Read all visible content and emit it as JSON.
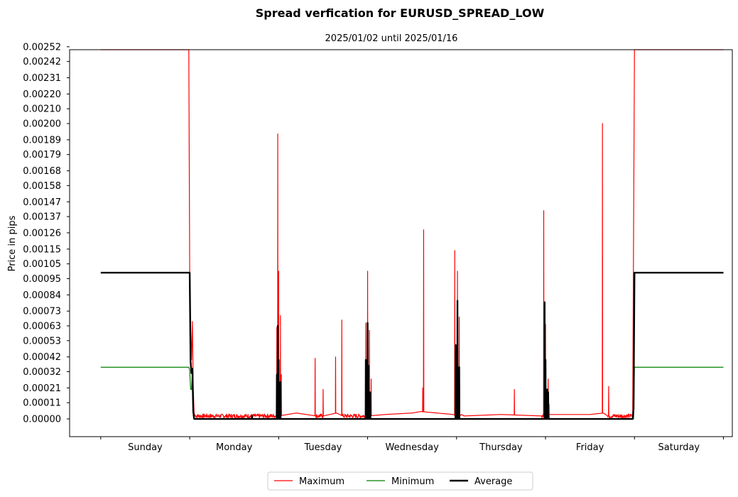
{
  "chart_data": {
    "type": "line",
    "title": "Spread verfication for EURUSD_SPREAD_LOW",
    "subtitle": "2025/01/02 until 2025/01/16",
    "xlabel": "",
    "ylabel": "Price in pips",
    "ylim": [
      -0.00012,
      0.0025
    ],
    "yticks": [
      "0.00000",
      "0.00011",
      "0.00021",
      "0.00032",
      "0.00042",
      "0.00053",
      "0.00063",
      "0.00073",
      "0.00084",
      "0.00095",
      "0.00105",
      "0.00115",
      "0.00126",
      "0.00137",
      "0.00147",
      "0.00158",
      "0.00168",
      "0.00179",
      "0.00189",
      "0.00200",
      "0.00210",
      "0.00220",
      "0.00231",
      "0.00242",
      "0.00252"
    ],
    "xlim": [
      -0.35,
      7.1
    ],
    "categories": [
      "Sunday",
      "Monday",
      "Tuesday",
      "Wednesday",
      "Thursday",
      "Friday",
      "Saturday"
    ],
    "category_centers": [
      0.5,
      1.5,
      2.5,
      3.5,
      4.5,
      5.5,
      6.5
    ],
    "category_boundaries": [
      0,
      1,
      2,
      3,
      4,
      5,
      6,
      7
    ],
    "legend": {
      "placement": "bottom-center",
      "entries": [
        "Maximum",
        "Minimum",
        "Average"
      ]
    },
    "series": [
      {
        "name": "Maximum",
        "color": "#ff0000",
        "width": 1.2,
        "baseline": 2e-05,
        "noise": 2e-05,
        "x": [
          0,
          0.99,
          1.0,
          1.01,
          1.02,
          1.03,
          1.04,
          1.05,
          1.06,
          1.07,
          2.0,
          2.2,
          2.42,
          2.5,
          2.65,
          2.72,
          3.0,
          3.2,
          3.5,
          3.6,
          3.96,
          4.0,
          4.03,
          4.06,
          4.08,
          4.5,
          4.96,
          5.0,
          5.02,
          5.5,
          5.65,
          5.7,
          5.98,
          6.0,
          6.01,
          7.0
        ],
        "y": [
          0.0025,
          0.0025,
          0.00099,
          0.0006,
          0.0004,
          0.00066,
          0.0002,
          4e-05,
          2e-05,
          2e-05,
          2e-05,
          4e-05,
          2e-05,
          2e-05,
          4e-05,
          2e-05,
          2e-05,
          3e-05,
          4e-05,
          5e-05,
          3e-05,
          2e-05,
          2e-05,
          3e-05,
          2e-05,
          3e-05,
          2e-05,
          2e-05,
          3e-05,
          3e-05,
          4e-05,
          2e-05,
          2e-05,
          0.0025,
          0.0025,
          0.0025
        ],
        "spikes": [
          [
            1.98,
            0.00062
          ],
          [
            1.99,
            0.00193
          ],
          [
            2.0,
            0.001
          ],
          [
            2.02,
            0.0007
          ],
          [
            2.03,
            0.0003
          ],
          [
            2.41,
            0.00041
          ],
          [
            2.5,
            0.0002
          ],
          [
            2.64,
            0.00042
          ],
          [
            2.71,
            0.00067
          ],
          [
            2.98,
            0.00065
          ],
          [
            3.0,
            0.001
          ],
          [
            3.02,
            0.0006
          ],
          [
            3.04,
            0.00027
          ],
          [
            3.62,
            0.00021
          ],
          [
            3.63,
            0.00128
          ],
          [
            3.98,
            0.00114
          ],
          [
            4.01,
            0.001
          ],
          [
            4.03,
            0.00069
          ],
          [
            4.65,
            0.0002
          ],
          [
            4.98,
            0.00141
          ],
          [
            5.0,
            0.00064
          ],
          [
            5.03,
            0.00027
          ],
          [
            5.64,
            0.002
          ],
          [
            5.71,
            0.00022
          ]
        ]
      },
      {
        "name": "Minimum",
        "color": "#008000",
        "width": 1.2,
        "baseline": 0.0,
        "noise": 0.0,
        "x": [
          0,
          0.99,
          1.0,
          1.01,
          1.02,
          1.03,
          1.04,
          1.05,
          2.0,
          5.99,
          6.0,
          7.0
        ],
        "y": [
          0.00035,
          0.00035,
          0.00033,
          0.0002,
          0.0002,
          0.00031,
          5e-05,
          0.0,
          0.0,
          0.0,
          0.00035,
          0.00035
        ],
        "spikes": [
          [
            1.7,
            2e-05
          ],
          [
            1.99,
            0.0002
          ],
          [
            2.0,
            0.00014
          ],
          [
            2.02,
            6e-05
          ],
          [
            3.0,
            0.00016
          ],
          [
            3.02,
            0.0001
          ],
          [
            4.0,
            0.00014
          ],
          [
            4.02,
            8e-05
          ],
          [
            5.0,
            0.0002
          ],
          [
            5.02,
            0.00014
          ],
          [
            5.04,
            0.0001
          ]
        ]
      },
      {
        "name": "Average",
        "color": "#000000",
        "width": 2.4,
        "baseline": 0.0,
        "noise": 0.0,
        "x": [
          0,
          0.99,
          1.0,
          1.01,
          1.02,
          1.03,
          1.04,
          1.05,
          5.98,
          5.99,
          6.0,
          7.0
        ],
        "y": [
          0.00099,
          0.00099,
          0.00099,
          0.00039,
          0.00031,
          0.00034,
          5e-05,
          0.0,
          0.0,
          7e-05,
          0.00099,
          0.00099
        ],
        "spikes": [
          [
            1.7,
            2e-05
          ],
          [
            1.98,
            0.0003
          ],
          [
            1.99,
            0.00063
          ],
          [
            2.0,
            0.0004
          ],
          [
            2.02,
            0.00025
          ],
          [
            2.98,
            0.0004
          ],
          [
            3.0,
            0.00065
          ],
          [
            3.01,
            0.00036
          ],
          [
            3.03,
            0.00018
          ],
          [
            3.99,
            0.0005
          ],
          [
            4.01,
            0.0008
          ],
          [
            4.02,
            0.00034
          ],
          [
            4.03,
            0.00035
          ],
          [
            4.99,
            0.00079
          ],
          [
            5.0,
            0.0004
          ],
          [
            5.02,
            0.0002
          ],
          [
            5.03,
            0.00018
          ]
        ]
      }
    ]
  }
}
